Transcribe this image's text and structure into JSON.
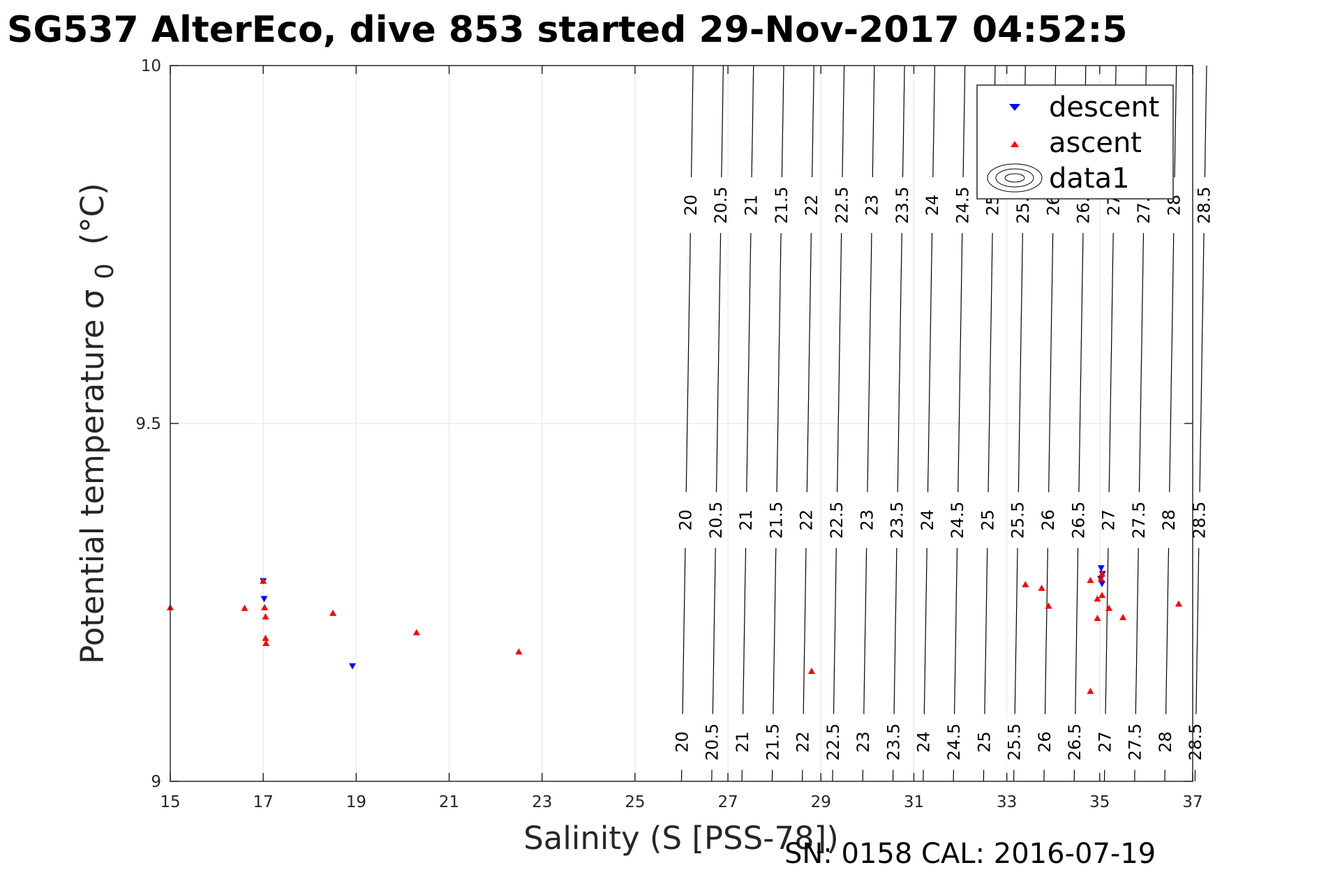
{
  "chart_data": {
    "type": "scatter",
    "title": "SG537 AlterEco, dive 853 started 29-Nov-2017 04:52:5",
    "xlabel": "Salinity (S [PSS-78])",
    "ylabel": "Potential temperature σ",
    "ylabel_sub": "0",
    "ylabel_unit": "(°C)",
    "xlim": [
      15,
      37
    ],
    "ylim": [
      9,
      10
    ],
    "xticks": [
      "15",
      "17",
      "19",
      "21",
      "23",
      "25",
      "27",
      "29",
      "31",
      "33",
      "35",
      "37"
    ],
    "yticks": [
      "9",
      "9.5",
      "10"
    ],
    "grid": true,
    "legend_position": "top-right",
    "series": [
      {
        "name": "descent",
        "marker": "triangle-down",
        "color": "#0000ff",
        "points": [
          [
            17.0,
            9.28
          ],
          [
            17.02,
            9.255
          ],
          [
            18.92,
            9.161
          ],
          [
            35.03,
            9.298
          ],
          [
            35.06,
            9.29
          ],
          [
            35.02,
            9.283
          ],
          [
            35.05,
            9.276
          ]
        ]
      },
      {
        "name": "ascent",
        "marker": "triangle-up",
        "color": "#ff0000",
        "points": [
          [
            15.0,
            9.243
          ],
          [
            16.6,
            9.242
          ],
          [
            17.0,
            9.28
          ],
          [
            17.03,
            9.243
          ],
          [
            17.05,
            9.23
          ],
          [
            17.05,
            9.2
          ],
          [
            17.06,
            9.193
          ],
          [
            18.5,
            9.235
          ],
          [
            20.3,
            9.208
          ],
          [
            22.5,
            9.181
          ],
          [
            28.8,
            9.154
          ],
          [
            33.4,
            9.275
          ],
          [
            33.75,
            9.27
          ],
          [
            33.9,
            9.245
          ],
          [
            34.8,
            9.281
          ],
          [
            34.8,
            9.126
          ],
          [
            34.95,
            9.255
          ],
          [
            34.95,
            9.228
          ],
          [
            35.05,
            9.26
          ],
          [
            35.05,
            9.29
          ],
          [
            35.03,
            9.283
          ],
          [
            35.2,
            9.242
          ],
          [
            35.5,
            9.229
          ],
          [
            36.7,
            9.248
          ]
        ]
      },
      {
        "name": "data1",
        "type": "contour",
        "color": "#000000",
        "levels": [
          20,
          20.5,
          21,
          21.5,
          22,
          22.5,
          23,
          23.5,
          24,
          24.5,
          25,
          25.5,
          26,
          26.5,
          27,
          27.5,
          28,
          28.5
        ],
        "level_labels": [
          "20",
          "20.5",
          "21",
          "21.5",
          "22",
          "22.5",
          "23",
          "23.5",
          "24",
          "24.5",
          "25",
          "25.5",
          "26",
          "26.5",
          "27",
          "27.5",
          "28",
          "28.5"
        ]
      }
    ],
    "legend": [
      "descent",
      "ascent",
      "data1"
    ]
  },
  "footer": "SN: 0158  CAL: 2016-07-19"
}
